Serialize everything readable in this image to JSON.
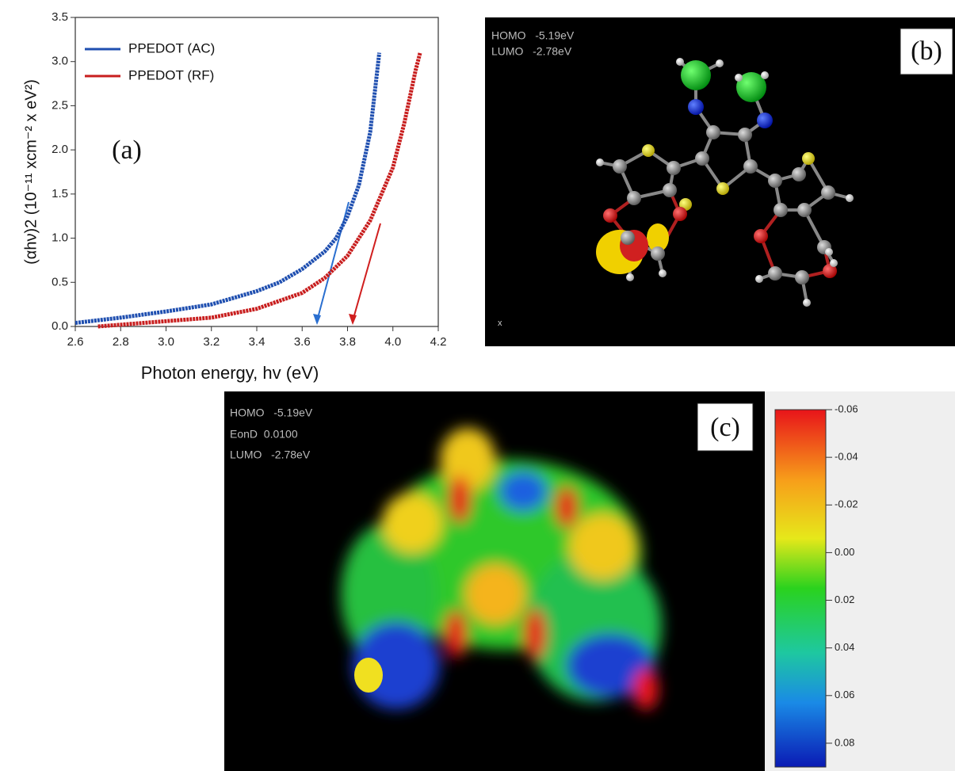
{
  "chart_data": {
    "type": "line",
    "annotation": "(a)",
    "x_label": "Photon energy, hv (eV)",
    "y_label": "(αhν)2 (10⁻¹¹ xcm⁻² x eV²)",
    "xlim": [
      2.6,
      4.2
    ],
    "ylim": [
      0,
      3.5
    ],
    "xticks": [
      2.6,
      2.8,
      {
        "value": 3,
        "label": "3.0"
      },
      3.2,
      3.4,
      3.6,
      3.8,
      {
        "value": 4,
        "label": "4.0"
      },
      4.2
    ],
    "yticks": [
      {
        "value": 0,
        "label": "0.0"
      },
      0.5,
      {
        "value": 1,
        "label": "1.0"
      },
      1.5,
      {
        "value": 2,
        "label": "2.0"
      },
      2.5,
      {
        "value": 3,
        "label": "3.0"
      },
      3.5
    ],
    "legend": "upper left",
    "series": [
      {
        "name": "PPEDOT (AC)",
        "color": "#1f4fb0",
        "x": [
          2.6,
          2.8,
          3.0,
          3.2,
          3.4,
          3.5,
          3.6,
          3.7,
          3.75,
          3.8,
          3.85,
          3.9,
          3.94
        ],
        "values": [
          0.04,
          0.1,
          0.17,
          0.25,
          0.4,
          0.5,
          0.65,
          0.85,
          1.0,
          1.25,
          1.6,
          2.2,
          3.1
        ]
      },
      {
        "name": "PPEDOT (RF)",
        "color": "#c81e1e",
        "x": [
          2.7,
          3.0,
          3.2,
          3.4,
          3.6,
          3.7,
          3.8,
          3.9,
          4.0,
          4.05,
          4.1,
          4.12
        ],
        "values": [
          0.0,
          0.06,
          0.1,
          0.2,
          0.38,
          0.55,
          0.8,
          1.2,
          1.8,
          2.3,
          2.9,
          3.1
        ]
      }
    ]
  },
  "panel_b": {
    "label": "(b)",
    "info": [
      "HOMO   -5.19eV",
      "LUMO   -2.78eV"
    ]
  },
  "panel_c": {
    "label": "(c)",
    "info": [
      "HOMO   -5.19eV",
      "EonD  0.0100",
      "LUMO   -2.78eV"
    ],
    "colorbar": {
      "lim": [
        -0.06,
        0.09
      ],
      "ticks": [
        -0.06,
        -0.04,
        -0.02,
        {
          "value": 0,
          "label": "0.00"
        },
        0.02,
        0.04,
        0.06,
        0.08
      ]
    }
  }
}
